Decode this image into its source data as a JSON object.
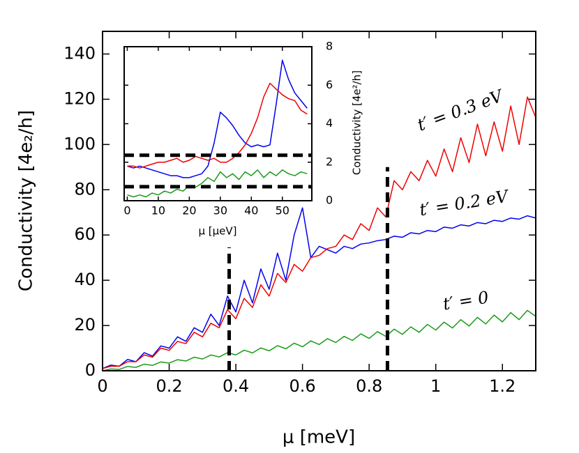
{
  "chart_data": [
    {
      "type": "line",
      "xlabel": "μ [meV]",
      "ylabel": "Conductivity [4e₂/h]",
      "xlim": [
        0,
        1.3
      ],
      "ylim": [
        0,
        150
      ],
      "xticks": [
        0,
        0.2,
        0.4,
        0.6,
        0.8,
        1,
        1.2
      ],
      "yticks": [
        0,
        20,
        40,
        60,
        80,
        100,
        120,
        140
      ],
      "x": [
        0,
        0.025,
        0.05,
        0.075,
        0.1,
        0.125,
        0.15,
        0.175,
        0.2,
        0.225,
        0.25,
        0.275,
        0.3,
        0.325,
        0.35,
        0.375,
        0.4,
        0.425,
        0.45,
        0.475,
        0.5,
        0.525,
        0.55,
        0.575,
        0.6,
        0.625,
        0.65,
        0.675,
        0.7,
        0.725,
        0.75,
        0.775,
        0.8,
        0.825,
        0.85,
        0.875,
        0.9,
        0.925,
        0.95,
        0.975,
        1,
        1.025,
        1.05,
        1.075,
        1.1,
        1.125,
        1.15,
        1.175,
        1.2,
        1.225,
        1.25,
        1.275,
        1.3
      ],
      "series": [
        {
          "name": "t′ = 0",
          "color": "#1a9a1a",
          "values": [
            0,
            0.8,
            0.6,
            1.9,
            1.5,
            2.9,
            2.4,
            3.9,
            3.4,
            4.9,
            4.3,
            6.0,
            5.2,
            7.0,
            6.1,
            8.0,
            7.0,
            9.1,
            7.9,
            10.1,
            8.8,
            11.1,
            9.7,
            12.2,
            10.6,
            13.2,
            11.6,
            14.2,
            12.5,
            15.2,
            13.4,
            16.3,
            14.3,
            17.3,
            15.2,
            18.4,
            16.1,
            19.4,
            17.0,
            20.5,
            18.0,
            21.5,
            18.9,
            22.6,
            19.8,
            23.6,
            20.7,
            24.6,
            21.6,
            25.7,
            22.6,
            26.7,
            24.0
          ]
        },
        {
          "name": "t′ = 0.2 eV",
          "color": "#0000ee",
          "values": [
            1,
            2.5,
            2,
            5,
            4,
            8,
            6.5,
            11,
            10,
            15,
            13,
            19,
            17,
            25,
            20,
            33,
            26,
            40,
            30,
            45,
            36,
            52,
            40,
            60,
            72,
            50,
            55,
            53.5,
            52,
            55,
            54,
            56,
            56.5,
            57.5,
            58,
            59.5,
            59,
            61,
            60.5,
            62,
            61.5,
            63.5,
            63,
            64.5,
            64,
            65.5,
            65,
            66.5,
            66,
            67.5,
            67,
            68.5,
            67.5
          ]
        },
        {
          "name": "t′ = 0.3 eV",
          "color": "#ee0000",
          "values": [
            1,
            2,
            2,
            4,
            4,
            7,
            6,
            10,
            9,
            13,
            12,
            17,
            15,
            21,
            19,
            27,
            23,
            32,
            28,
            38,
            33,
            43,
            39,
            47,
            44,
            50,
            51,
            54,
            55,
            60,
            58,
            65,
            62,
            72,
            68,
            84,
            80,
            88,
            84,
            93,
            86,
            98,
            88,
            103,
            92,
            109,
            95,
            110,
            97,
            117,
            100,
            121,
            112
          ]
        }
      ],
      "reference_lines": [
        {
          "x": 0.38,
          "y": [
            0,
            54.5
          ]
        },
        {
          "x": 0.855,
          "y": [
            0,
            90
          ]
        }
      ]
    },
    {
      "type": "line",
      "xlabel": "μ [μeV]",
      "ylabel": "Conductivity [4e²/h]",
      "xlim": [
        -1,
        59.5
      ],
      "ylim": [
        0,
        8
      ],
      "xticks": [
        0,
        10,
        20,
        30,
        40,
        50
      ],
      "yticks": [
        0,
        2,
        4,
        6,
        8
      ],
      "x": [
        0,
        2,
        4,
        6,
        8,
        10,
        12,
        14,
        16,
        18,
        20,
        22,
        24,
        26,
        28,
        30,
        32,
        34,
        36,
        38,
        40,
        42,
        44,
        46,
        48,
        50,
        52,
        54,
        56,
        58
      ],
      "series": [
        {
          "color": "#1a9a1a",
          "values": [
            0.3,
            0.2,
            0.3,
            0.2,
            0.4,
            0.3,
            0.5,
            0.4,
            0.6,
            0.5,
            0.8,
            0.7,
            0.9,
            1.2,
            1.0,
            1.5,
            1.2,
            1.4,
            1.1,
            1.5,
            1.3,
            1.6,
            1.2,
            1.5,
            1.3,
            1.6,
            1.4,
            1.3,
            1.5,
            1.4
          ]
        },
        {
          "color": "#0000ee",
          "values": [
            1.8,
            1.7,
            1.8,
            1.7,
            1.6,
            1.5,
            1.4,
            1.3,
            1.3,
            1.2,
            1.2,
            1.3,
            1.4,
            1.8,
            3.0,
            4.6,
            4.3,
            3.9,
            3.4,
            3.0,
            2.8,
            2.9,
            2.8,
            2.9,
            5.0,
            7.3,
            6.3,
            5.6,
            5.2,
            4.8
          ]
        },
        {
          "color": "#ee0000",
          "values": [
            1.8,
            1.8,
            1.7,
            1.8,
            1.9,
            2.0,
            2.0,
            2.1,
            2.2,
            2.0,
            2.1,
            2.3,
            2.2,
            2.1,
            2.2,
            2.0,
            2.0,
            2.2,
            2.5,
            2.9,
            3.5,
            4.3,
            5.4,
            6.1,
            5.8,
            5.5,
            5.3,
            5.2,
            4.7,
            4.5
          ]
        }
      ],
      "reference_lines": [
        {
          "y": 2.36
        },
        {
          "y": 0.73
        }
      ]
    }
  ]
}
